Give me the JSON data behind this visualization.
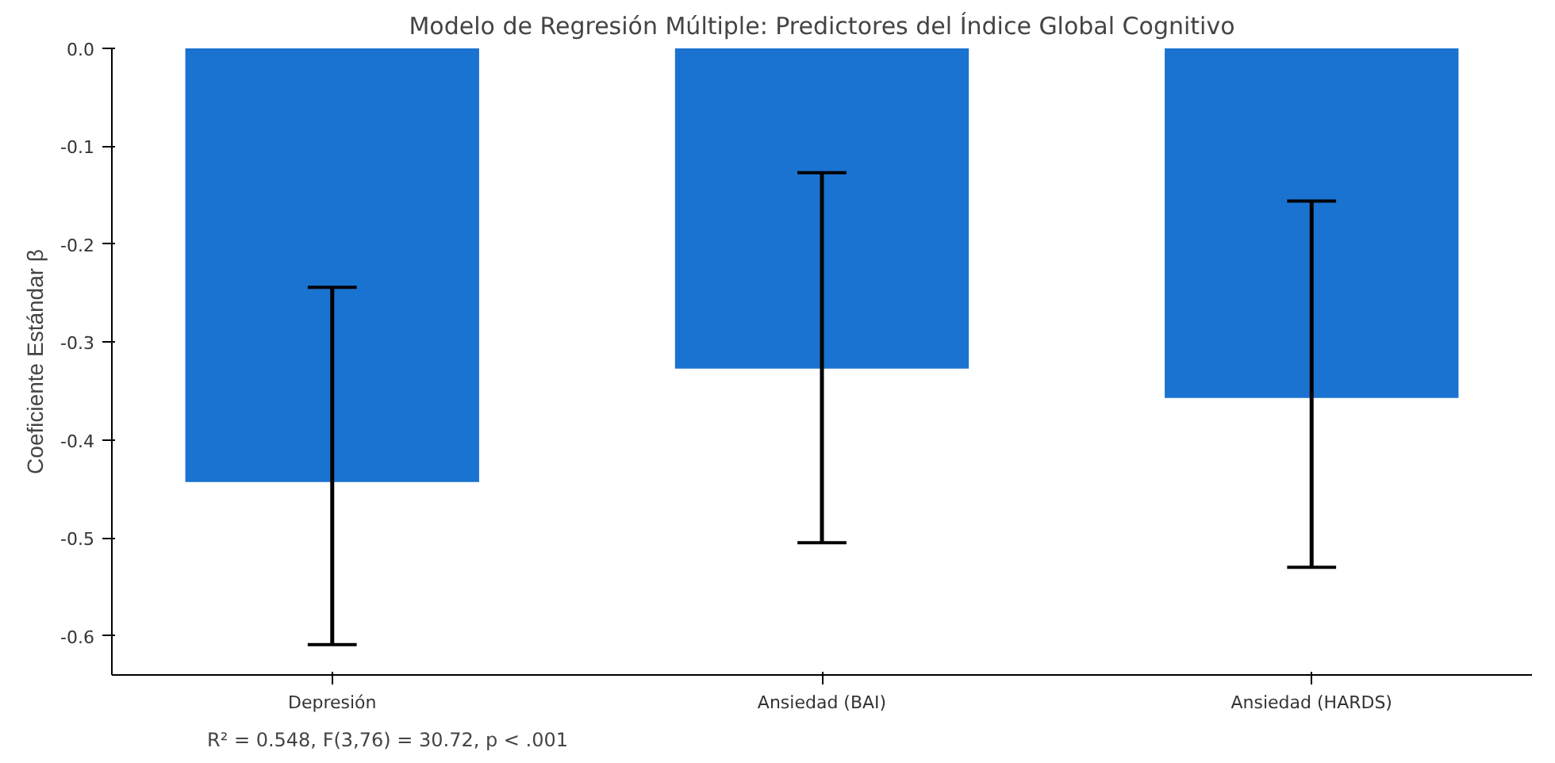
{
  "chart_data": {
    "type": "bar",
    "title": "Modelo de Regresión Múltiple: Predictores del Índice Global Cognitivo",
    "ylabel": "Coeficiente Estándar β",
    "categories": [
      "Depresión",
      "Ansiedad (BAI)",
      "Ansiedad (HARDS)"
    ],
    "values": [
      -0.443,
      -0.327,
      -0.357
    ],
    "color": "#1a73d0",
    "errors": [
      [
        -0.609,
        -0.244
      ],
      [
        -0.505,
        -0.127
      ],
      [
        -0.53,
        -0.156
      ]
    ],
    "ylim": [
      -0.64,
      0.0
    ],
    "yticks": [
      {
        "value": 0.0,
        "label": "0.0"
      },
      -0.1,
      -0.2,
      -0.3,
      -0.4,
      -0.5,
      -0.6
    ],
    "grid": false,
    "annotations": [
      "R² = 0.548, F(3,76) = 30.72, p < .001"
    ]
  }
}
